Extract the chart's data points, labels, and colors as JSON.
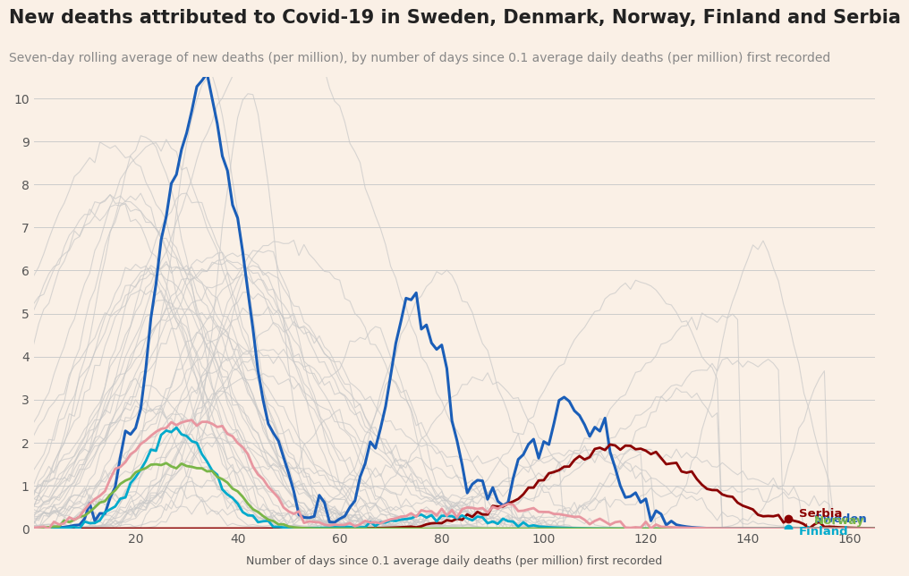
{
  "title": "New deaths attributed to Covid-19 in Sweden, Denmark, Norway, Finland and Serbia",
  "subtitle": "Seven-day rolling average of new deaths (per million), by number of days since 0.1 average daily deaths (per million) first recorded",
  "xlabel": "Number of days since 0.1 average daily deaths (per million) first recorded",
  "background_color": "#faf0e6",
  "ylim": [
    0,
    10.5
  ],
  "xlim": [
    0,
    165
  ],
  "yticks": [
    0,
    1,
    2,
    3,
    4,
    5,
    6,
    7,
    8,
    9,
    10
  ],
  "xticks": [
    20,
    40,
    60,
    80,
    100,
    120,
    140,
    160
  ],
  "title_fontsize": 15,
  "subtitle_fontsize": 10,
  "colors": {
    "sweden": "#1a5eb8",
    "serbia": "#8b0000",
    "finland": "#00aacc",
    "norway": "#7ab648",
    "denmark": "#e07b54",
    "background_lines": "#c8c8c8"
  },
  "legend": {
    "Serbia": {
      "color": "#8b0000",
      "marker": "o"
    },
    "Sweden": {
      "color": "#1a5eb8",
      "marker": "none"
    },
    "Finland": {
      "color": "#00aacc",
      "marker": "o"
    },
    "Norway": {
      "color": "#7ab648",
      "marker": "none"
    },
    "Denmark": {
      "color": "#e07b54",
      "marker": "none"
    }
  }
}
